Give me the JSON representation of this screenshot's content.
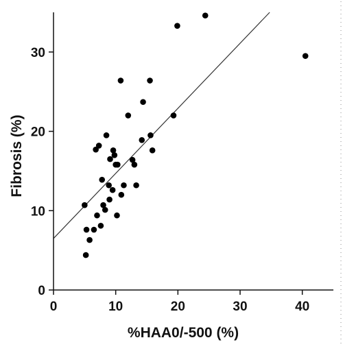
{
  "colors": {
    "background": "#ffffff",
    "axis": "#111111",
    "points": "#000000",
    "fit_line": "#333333",
    "edge_dots": "#888888"
  },
  "chart_data": {
    "type": "scatter",
    "title": "",
    "xlabel": "%HAA0/-500 (%)",
    "ylabel": "Fibrosis (%)",
    "xlim": [
      0,
      45
    ],
    "ylim": [
      0,
      35
    ],
    "x_ticks": [
      0,
      10,
      20,
      30,
      40
    ],
    "y_ticks": [
      0,
      10,
      20,
      30
    ],
    "grid": false,
    "legend": "none",
    "fit_line": {
      "intercept": 6.5,
      "slope": 0.82
    },
    "points": [
      {
        "x": 5.2,
        "y": 4.4
      },
      {
        "x": 5.0,
        "y": 10.7
      },
      {
        "x": 5.3,
        "y": 7.6
      },
      {
        "x": 5.8,
        "y": 6.3
      },
      {
        "x": 6.5,
        "y": 7.6
      },
      {
        "x": 7.0,
        "y": 9.4
      },
      {
        "x": 6.8,
        "y": 17.7
      },
      {
        "x": 7.3,
        "y": 18.2
      },
      {
        "x": 7.6,
        "y": 8.1
      },
      {
        "x": 7.8,
        "y": 13.9
      },
      {
        "x": 8.0,
        "y": 10.7
      },
      {
        "x": 8.3,
        "y": 10.1
      },
      {
        "x": 8.5,
        "y": 19.5
      },
      {
        "x": 8.9,
        "y": 13.2
      },
      {
        "x": 9.0,
        "y": 11.4
      },
      {
        "x": 9.1,
        "y": 16.5
      },
      {
        "x": 9.5,
        "y": 12.6
      },
      {
        "x": 9.6,
        "y": 17.6
      },
      {
        "x": 9.8,
        "y": 17.0
      },
      {
        "x": 10.0,
        "y": 15.8
      },
      {
        "x": 10.2,
        "y": 9.4
      },
      {
        "x": 10.3,
        "y": 15.8
      },
      {
        "x": 10.8,
        "y": 26.4
      },
      {
        "x": 10.9,
        "y": 12.0
      },
      {
        "x": 11.3,
        "y": 13.2
      },
      {
        "x": 12.0,
        "y": 22.0
      },
      {
        "x": 12.7,
        "y": 16.4
      },
      {
        "x": 13.0,
        "y": 15.8
      },
      {
        "x": 13.3,
        "y": 13.2
      },
      {
        "x": 14.2,
        "y": 18.9
      },
      {
        "x": 14.4,
        "y": 23.7
      },
      {
        "x": 15.5,
        "y": 26.4
      },
      {
        "x": 15.6,
        "y": 19.5
      },
      {
        "x": 15.9,
        "y": 17.6
      },
      {
        "x": 19.3,
        "y": 22.0
      },
      {
        "x": 19.9,
        "y": 33.3
      },
      {
        "x": 24.4,
        "y": 34.6
      },
      {
        "x": 40.5,
        "y": 29.5
      }
    ]
  }
}
